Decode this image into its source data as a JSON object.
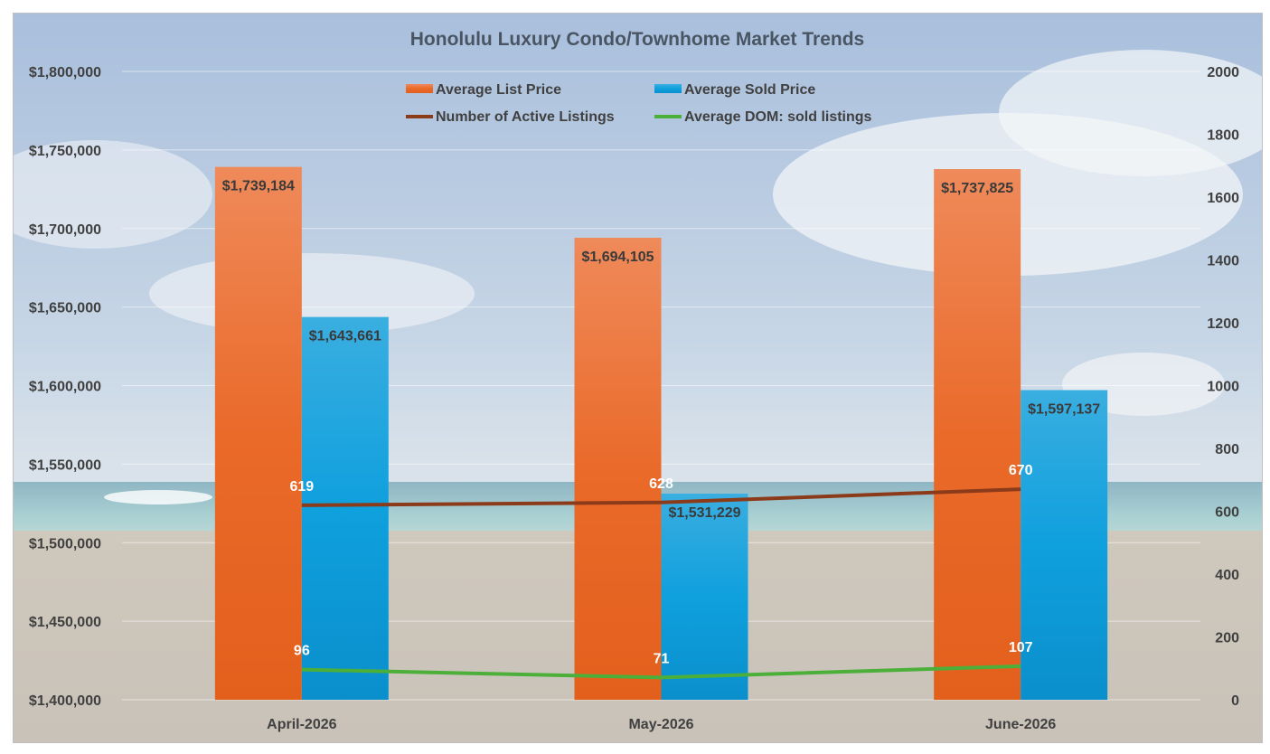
{
  "chart_data": {
    "type": "bar",
    "title": "Honolulu Luxury Condo/Townhome Market Trends",
    "categories": [
      "April-2026",
      "May-2026",
      "June-2026"
    ],
    "series": [
      {
        "name": "Average List Price",
        "kind": "bar",
        "axis": "left",
        "color": "#e8662a",
        "values": [
          1739184,
          1694105,
          1737825
        ],
        "labels": [
          "$1,739,184",
          "$1,694,105",
          "$1,737,825"
        ]
      },
      {
        "name": "Average Sold Price",
        "kind": "bar",
        "axis": "left",
        "color": "#1a9ad6",
        "values": [
          1643661,
          1531229,
          1597137
        ],
        "labels": [
          "$1,643,661",
          "$1,531,229",
          "$1,597,137"
        ]
      },
      {
        "name": "Number of Active Listings",
        "kind": "line",
        "axis": "right",
        "color": "#8b3a1a",
        "values": [
          619,
          628,
          670
        ],
        "labels": [
          "619",
          "628",
          "670"
        ]
      },
      {
        "name": "Average DOM: sold listings",
        "kind": "line",
        "axis": "right",
        "color": "#4caf3a",
        "values": [
          96,
          71,
          107
        ],
        "labels": [
          "96",
          "71",
          "107"
        ]
      }
    ],
    "left_axis": {
      "min": 1400000,
      "max": 1800000,
      "step": 50000,
      "tick_labels": [
        "$1,400,000",
        "$1,450,000",
        "$1,500,000",
        "$1,550,000",
        "$1,600,000",
        "$1,650,000",
        "$1,700,000",
        "$1,750,000",
        "$1,800,000"
      ]
    },
    "right_axis": {
      "min": 0,
      "max": 2000,
      "step": 200,
      "tick_labels": [
        "0",
        "200",
        "400",
        "600",
        "800",
        "1000",
        "1200",
        "1400",
        "1600",
        "1800",
        "2000"
      ]
    },
    "grid": true,
    "legend_position": "top-center",
    "background": "beach-photo"
  }
}
